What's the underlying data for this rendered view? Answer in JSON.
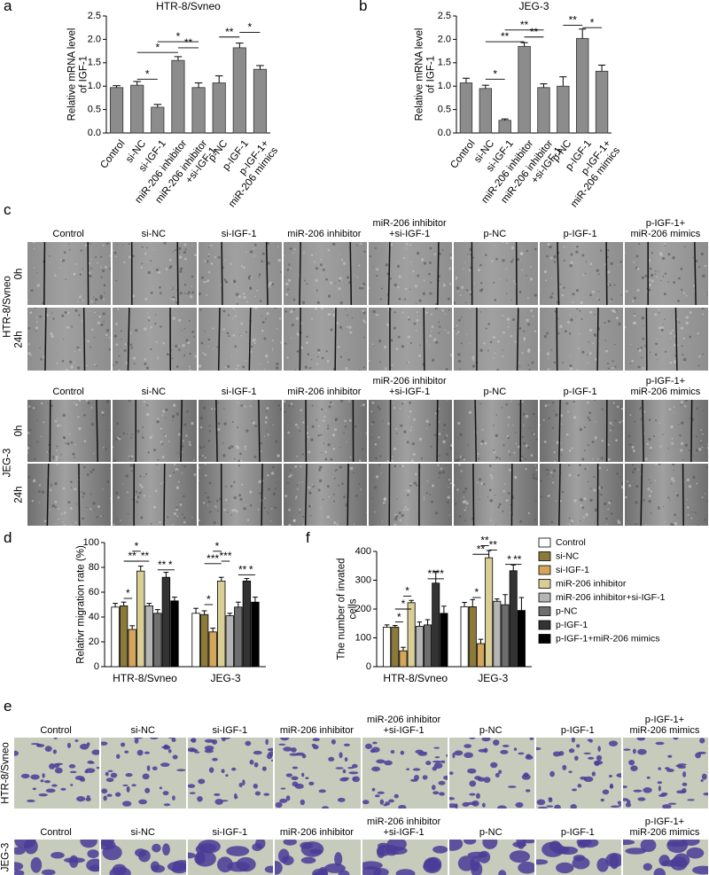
{
  "panel_labels": [
    "a",
    "b",
    "c",
    "d",
    "e",
    "f"
  ],
  "chart_data": [
    {
      "type": "bar",
      "title": "HTR-8/Svneo",
      "y_label": "Relative mRNA level\nof IGF-1",
      "categories": [
        "Control",
        "si-NC",
        "si-IGF-1",
        "miR-206 inhibitor",
        "miR-206 inhibitor\n+si-IGF-1",
        "p-NC",
        "p-IGF-1",
        "p-IGF-1+\nmiR-206 mimics"
      ],
      "values": [
        0.97,
        1.02,
        0.55,
        1.55,
        0.97,
        1.07,
        1.82,
        1.36
      ],
      "errors": [
        0.04,
        0.08,
        0.06,
        0.08,
        0.1,
        0.15,
        0.1,
        0.08
      ],
      "color": "#8c8c8c",
      "ylim": [
        0,
        2.5
      ],
      "yticks": [
        {
          "value": 0,
          "label": "0.0"
        },
        0.5,
        {
          "value": 1,
          "label": "1.0"
        },
        1.5,
        {
          "value": 2,
          "label": "2.0"
        },
        2.5
      ],
      "annotations": [
        {
          "text": "*",
          "from": 1,
          "to": 2,
          "y": 1.15
        },
        {
          "text": "*",
          "from": 1,
          "to": 3,
          "y": 1.72
        },
        {
          "text": "*",
          "from": 2,
          "to": 4,
          "y": 1.95
        },
        {
          "text": "**",
          "from": 3,
          "to": 4,
          "y": 1.82
        },
        {
          "text": "**",
          "from": 5,
          "to": 6,
          "y": 2.05
        },
        {
          "text": "*",
          "from": 6,
          "to": 7,
          "y": 2.15
        }
      ]
    },
    {
      "type": "bar",
      "title": "JEG-3",
      "y_label": "Relative mRNA level\nof IGF-1",
      "categories": [
        "Control",
        "si-NC",
        "si-IGF-1",
        "miR-206 inhibitor",
        "miR-206 inhibitor\n+si-IGF-1",
        "p-NC",
        "p-IGF-1",
        "p-IGF-1+\nmiR-206 mimics"
      ],
      "values": [
        1.07,
        0.95,
        0.27,
        1.85,
        0.97,
        1.0,
        2.02,
        1.32
      ],
      "errors": [
        0.1,
        0.07,
        0.03,
        0.08,
        0.08,
        0.2,
        0.2,
        0.13
      ],
      "color": "#8c8c8c",
      "ylim": [
        0,
        2.5
      ],
      "yticks": [
        {
          "value": 0,
          "label": "0.0"
        },
        0.5,
        {
          "value": 1,
          "label": "1.0"
        },
        1.5,
        {
          "value": 2,
          "label": "2.0"
        },
        2.5
      ],
      "annotations": [
        {
          "text": "*",
          "from": 1,
          "to": 2,
          "y": 1.15
        },
        {
          "text": "**",
          "from": 1,
          "to": 3,
          "y": 1.95
        },
        {
          "text": "**",
          "from": 2,
          "to": 4,
          "y": 2.2
        },
        {
          "text": "**",
          "from": 3,
          "to": 4,
          "y": 2.05
        },
        {
          "text": "**",
          "from": 5,
          "to": 6,
          "y": 2.3
        },
        {
          "text": "*",
          "from": 6,
          "to": 7,
          "y": 2.25
        }
      ]
    },
    {
      "type": "grouped_bar",
      "y_label": "Relativr migration rate (%)",
      "categories": [
        "HTR-8/Svneo",
        "JEG-3"
      ],
      "series": [
        {
          "color": "#ffffff",
          "values": [
            48,
            43
          ],
          "errors": [
            3,
            4
          ]
        },
        {
          "color": "#8b7a3a",
          "values": [
            49,
            42
          ],
          "errors": [
            3,
            3
          ]
        },
        {
          "color": "#d4a55a",
          "values": [
            30,
            28
          ],
          "errors": [
            3,
            3
          ]
        },
        {
          "color": "#d9cf96",
          "values": [
            77,
            69
          ],
          "errors": [
            4,
            3
          ]
        },
        {
          "color": "#b5b5b5",
          "values": [
            49,
            41
          ],
          "errors": [
            2,
            2
          ]
        },
        {
          "color": "#6e6e6e",
          "values": [
            43,
            48
          ],
          "errors": [
            3,
            4
          ]
        },
        {
          "color": "#333333",
          "values": [
            72,
            69
          ],
          "errors": [
            4,
            2
          ]
        },
        {
          "color": "#000000",
          "values": [
            53,
            52
          ],
          "errors": [
            3,
            4
          ]
        }
      ],
      "ylim": [
        0,
        100
      ],
      "yticks": [
        0,
        20,
        40,
        60,
        80,
        100
      ],
      "annotations": [
        {
          "text": "*",
          "group": 0,
          "from": 1,
          "to": 2,
          "y": 55
        },
        {
          "text": "**",
          "group": 0,
          "from": 1,
          "to": 3,
          "y": 85
        },
        {
          "text": "*",
          "group": 0,
          "from": 2,
          "to": 3,
          "y": 93
        },
        {
          "text": "**",
          "group": 0,
          "from": 3,
          "to": 4,
          "y": 85
        },
        {
          "text": "**",
          "group": 0,
          "from": 5,
          "to": 6,
          "y": 78
        },
        {
          "text": "*",
          "group": 0,
          "from": 6,
          "to": 7,
          "y": 78
        },
        {
          "text": "*",
          "group": 1,
          "from": 1,
          "to": 2,
          "y": 50
        },
        {
          "text": "***",
          "group": 1,
          "from": 1,
          "to": 3,
          "y": 83
        },
        {
          "text": "*",
          "group": 1,
          "from": 2,
          "to": 3,
          "y": 93
        },
        {
          "text": "***",
          "group": 1,
          "from": 3,
          "to": 4,
          "y": 85
        },
        {
          "text": "**",
          "group": 1,
          "from": 5,
          "to": 6,
          "y": 74
        },
        {
          "text": "*",
          "group": 1,
          "from": 6,
          "to": 7,
          "y": 74
        }
      ]
    },
    {
      "type": "grouped_bar",
      "y_label": "The number of invated\ncells",
      "categories": [
        "HTR-8/Svneo",
        "JEG-3"
      ],
      "legend": "right",
      "series": [
        {
          "name": "Control",
          "color": "#ffffff",
          "values": [
            137,
            208
          ],
          "errors": [
            8,
            15
          ]
        },
        {
          "name": "si-NC",
          "color": "#8b7a3a",
          "values": [
            137,
            208
          ],
          "errors": [
            6,
            25
          ]
        },
        {
          "name": "si-IGF-1",
          "color": "#d4a55a",
          "values": [
            55,
            80
          ],
          "errors": [
            12,
            15
          ]
        },
        {
          "name": "miR-206 inhibitor",
          "color": "#d9cf96",
          "values": [
            222,
            378
          ],
          "errors": [
            8,
            25
          ]
        },
        {
          "name": "miR-206 inhibitor+si-IGF-1",
          "color": "#b5b5b5",
          "values": [
            140,
            227
          ],
          "errors": [
            15,
            8
          ]
        },
        {
          "name": "p-NC",
          "color": "#6e6e6e",
          "values": [
            145,
            215
          ],
          "errors": [
            18,
            35
          ]
        },
        {
          "name": "p-IGF-1",
          "color": "#333333",
          "values": [
            290,
            333
          ],
          "errors": [
            40,
            20
          ]
        },
        {
          "name": "p-IGF-1+miR-206 mimics",
          "color": "#000000",
          "values": [
            185,
            195
          ],
          "errors": [
            25,
            45
          ]
        }
      ],
      "ylim": [
        0,
        400
      ],
      "yticks": [
        0,
        100,
        200,
        300,
        400
      ],
      "annotations": [
        {
          "text": "*",
          "group": 0,
          "from": 1,
          "to": 2,
          "y": 155
        },
        {
          "text": "*",
          "group": 0,
          "from": 1,
          "to": 3,
          "y": 200
        },
        {
          "text": "*",
          "group": 0,
          "from": 2,
          "to": 3,
          "y": 245
        },
        {
          "text": "**",
          "group": 0,
          "from": 5,
          "to": 6,
          "y": 305
        },
        {
          "text": "**",
          "group": 0,
          "from": 6,
          "to": 7,
          "y": 305
        },
        {
          "text": "*",
          "group": 1,
          "from": 1,
          "to": 2,
          "y": 240
        },
        {
          "text": "**",
          "group": 1,
          "from": 1,
          "to": 3,
          "y": 390
        },
        {
          "text": "**",
          "group": 1,
          "from": 2,
          "to": 3,
          "y": 420
        },
        {
          "text": "**",
          "group": 1,
          "from": 3,
          "to": 4,
          "y": 405
        },
        {
          "text": "*",
          "group": 1,
          "from": 5,
          "to": 6,
          "y": 355
        },
        {
          "text": "**",
          "group": 1,
          "from": 6,
          "to": 7,
          "y": 355
        }
      ]
    }
  ],
  "panel_c": {
    "columns": [
      "Control",
      "si-NC",
      "si-IGF-1",
      "miR-206 inhibitor",
      "miR-206 inhibitor\n+si-IGF-1",
      "p-NC",
      "p-IGF-1",
      "p-IGF-1+\nmiR-206 mimics"
    ],
    "groups": [
      {
        "name": "HTR-8/Svneo",
        "rows": [
          "0h",
          "24h"
        ]
      },
      {
        "name": "JEG-3",
        "rows": [
          "0h",
          "24h"
        ]
      }
    ]
  },
  "panel_e": {
    "columns": [
      "Control",
      "si-NC",
      "si-IGF-1",
      "miR-206 inhibitor",
      "miR-206 inhibitor\n+si-IGF-1",
      "p-NC",
      "p-IGF-1",
      "p-IGF-1+\nmiR-206 mimics"
    ],
    "rows": [
      "HTR-8/Svneo",
      "JEG-3"
    ]
  }
}
